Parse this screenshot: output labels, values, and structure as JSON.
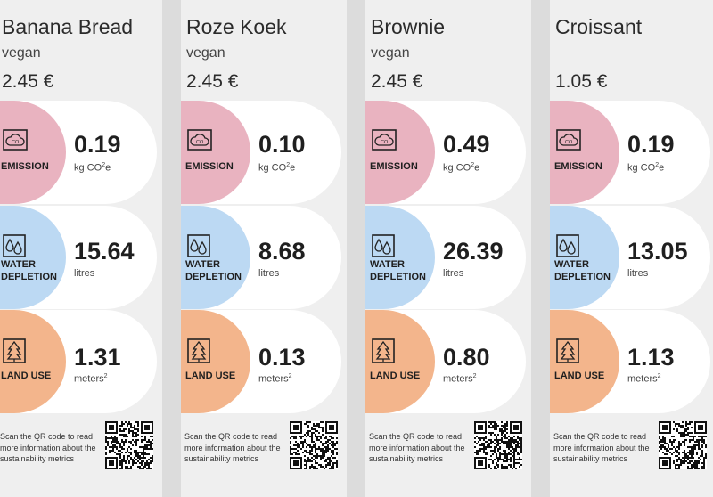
{
  "colors": {
    "emission": "#e9b3c0",
    "water": "#bcd9f3",
    "land": "#f3b58c",
    "card": "#efefef",
    "pill": "#ffffff"
  },
  "labels": {
    "emission": "EMISSION",
    "water_line1": "WATER",
    "water_line2": "DEPLETION",
    "land": "LAND USE",
    "unit_emission": "kg CO",
    "unit_emission_sup": "2",
    "unit_emission_tail": "e",
    "unit_water": "litres",
    "unit_land": "meters",
    "unit_land_sup": "2",
    "footer": "Scan the QR code to read more information about the sustainability metrics"
  },
  "icons": {
    "emission": "co2-cloud-icon",
    "water": "water-drops-icon",
    "land": "tree-icon",
    "qr": "qr-code"
  },
  "cards": [
    {
      "name": "Banana Bread",
      "tag": "vegan",
      "price": "2.45 €",
      "emission": "0.19",
      "water": "15.64",
      "land": "1.31"
    },
    {
      "name": "Roze Koek",
      "tag": "vegan",
      "price": "2.45 €",
      "emission": "0.10",
      "water": "8.68",
      "land": "0.13"
    },
    {
      "name": "Brownie",
      "tag": "vegan",
      "price": "2.45 €",
      "emission": "0.49",
      "water": "26.39",
      "land": "0.80"
    },
    {
      "name": "Croissant",
      "tag": "",
      "price": "1.05 €",
      "emission": "0.19",
      "water": "13.05",
      "land": "1.13"
    }
  ]
}
